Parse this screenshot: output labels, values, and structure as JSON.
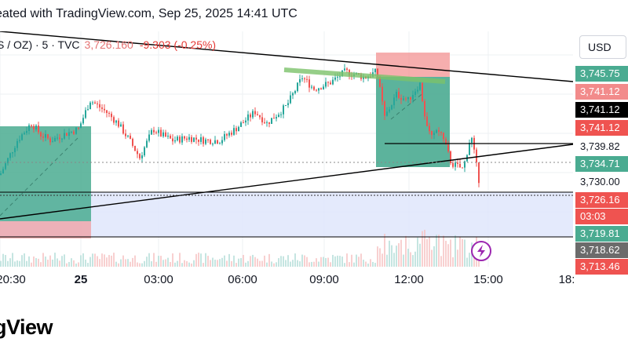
{
  "header": {
    "created": "eated with TradingView.com, Sep 25, 2025 14:41 UTC"
  },
  "symbol": {
    "name": "S / OZ) · 5 · TVC",
    "price": "3,726.160",
    "change": "-9.303 (-0.25%)"
  },
  "price_scale": {
    "currency": "USD",
    "tags": [
      {
        "label": "3,745.75",
        "bg": "#4aab91",
        "fg": "#ffffff"
      },
      {
        "label": "3,741.12",
        "bg": "#f28b8b",
        "fg": "#ffffff"
      },
      {
        "label": "3,741.12",
        "bg": "#000000",
        "fg": "#ffffff"
      },
      {
        "label": "3,741.12",
        "bg": "#ef5350",
        "fg": "#ffffff"
      },
      {
        "label": "3,739.82",
        "bg": "#ffffff",
        "fg": "#131722"
      },
      {
        "label": "3,734.71",
        "bg": "#4aab91",
        "fg": "#ffffff"
      },
      {
        "label": "3,730.00",
        "bg": "#ffffff",
        "fg": "#131722"
      },
      {
        "label": "3,726.16",
        "bg": "#ef5350",
        "fg": "#ffffff"
      },
      {
        "label": "03:03",
        "bg": "#ef5350",
        "fg": "#ffffff"
      },
      {
        "label": "3,719.81",
        "bg": "#4aab91",
        "fg": "#ffffff"
      },
      {
        "label": "3,718.62",
        "bg": "#6b6b6b",
        "fg": "#ffffff"
      },
      {
        "label": "3,713.46",
        "bg": "#ef5350",
        "fg": "#ffffff"
      }
    ]
  },
  "time_axis": {
    "labels": [
      "20:30",
      "25",
      "03:00",
      "06:00",
      "09:00",
      "12:00",
      "15:00",
      "18:"
    ]
  },
  "brand": {
    "text": "gView"
  },
  "colors": {
    "up": "#26a69a",
    "down": "#ef5350",
    "long_zone": "#4aab91",
    "short_zone": "#f28b8b",
    "range_fill": "#dfe6fb"
  },
  "icons": {
    "alert": "lightning-icon"
  },
  "chart_data": {
    "type": "candlestick",
    "interval": "5",
    "x_axis_times": [
      "20:30",
      "25",
      "03:00",
      "06:00",
      "09:00",
      "12:00",
      "15:00"
    ],
    "ylim": [
      3711,
      3752
    ],
    "last_price": 3726.16,
    "anchors": [
      [
        0,
        3727
      ],
      [
        22,
        3733
      ],
      [
        40,
        3736
      ],
      [
        52,
        3734
      ],
      [
        65,
        3733
      ],
      [
        80,
        3734
      ],
      [
        100,
        3735
      ],
      [
        115,
        3740
      ],
      [
        135,
        3738
      ],
      [
        150,
        3736
      ],
      [
        165,
        3733
      ],
      [
        178,
        3730
      ],
      [
        195,
        3735
      ],
      [
        205,
        3734
      ],
      [
        220,
        3733
      ],
      [
        240,
        3733.5
      ],
      [
        260,
        3733
      ],
      [
        280,
        3733
      ],
      [
        300,
        3735
      ],
      [
        325,
        3738
      ],
      [
        340,
        3736
      ],
      [
        365,
        3739
      ],
      [
        385,
        3744
      ],
      [
        400,
        3742
      ],
      [
        420,
        3743
      ],
      [
        440,
        3745
      ],
      [
        465,
        3744
      ],
      [
        480,
        3745
      ],
      [
        490,
        3737
      ],
      [
        505,
        3741
      ],
      [
        520,
        3740
      ],
      [
        535,
        3743
      ],
      [
        545,
        3734
      ],
      [
        560,
        3735
      ],
      [
        575,
        3729
      ],
      [
        590,
        3728
      ],
      [
        600,
        3734
      ],
      [
        610,
        3726.2
      ]
    ],
    "levels": [
      3739.82,
      3734.71,
      3726.16,
      3719.81
    ]
  }
}
